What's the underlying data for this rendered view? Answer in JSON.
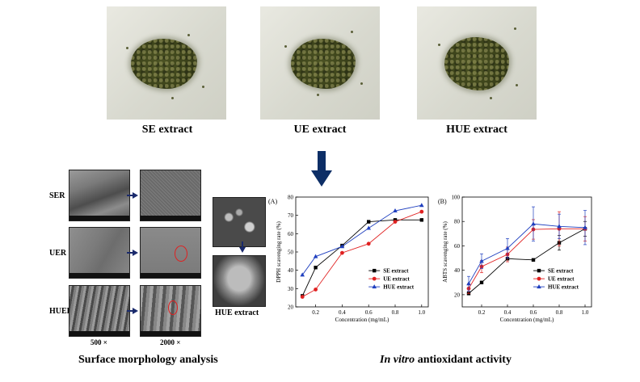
{
  "photos": {
    "captions": [
      "SE extract",
      "UE extract",
      "HUE extract"
    ],
    "colors": {
      "background": "#d9dad0",
      "powder": "#3f461c"
    }
  },
  "sem_panel": {
    "row_labels": [
      "SER",
      "UER",
      "HUER"
    ],
    "magnifications": [
      "500 ×",
      "2000 ×"
    ],
    "hue_label": "HUE extract",
    "caption": "Surface morphology analysis"
  },
  "antioxidant_caption": {
    "italic": "In vitro",
    "rest": " antioxidant activity"
  },
  "chart_data": [
    {
      "type": "line",
      "panel_label": "(A)",
      "title": "",
      "xlabel": "Concentration (mg/mL)",
      "ylabel": "DPPH scavenging rate (%)",
      "xlim": [
        0.05,
        1.05
      ],
      "ylim": [
        20,
        80
      ],
      "x_ticks": [
        0.2,
        0.4,
        0.6,
        0.8,
        1.0
      ],
      "y_ticks": [
        20,
        30,
        40,
        50,
        60,
        70,
        80
      ],
      "x_tick_labels": [
        "0.2",
        "0.4",
        "0.6",
        "0.8",
        "1.0"
      ],
      "y_tick_labels": [
        "20",
        "30",
        "40",
        "50",
        "60",
        "70",
        "80"
      ],
      "x": [
        0.1,
        0.2,
        0.4,
        0.6,
        0.8,
        1.0
      ],
      "legend_position": "bottom-right",
      "series": [
        {
          "name": "SE extract",
          "color": "#000000",
          "marker": "square",
          "values": [
            26,
            41.5,
            53.5,
            66.5,
            67.5,
            67.5
          ]
        },
        {
          "name": "UE extract",
          "color": "#e02020",
          "marker": "circle",
          "values": [
            25.5,
            29.5,
            49.5,
            54.5,
            66.5,
            72
          ]
        },
        {
          "name": "HUE extract",
          "color": "#1f3fbf",
          "marker": "triangle",
          "values": [
            37.5,
            47.5,
            53,
            63,
            72.5,
            75.5
          ]
        }
      ]
    },
    {
      "type": "line",
      "panel_label": "(B)",
      "title": "",
      "xlabel": "Concentration (mg/mL)",
      "ylabel": "ABTS scavenging rate (%)",
      "xlim": [
        0.05,
        1.05
      ],
      "ylim": [
        10,
        100
      ],
      "x_ticks": [
        0.2,
        0.4,
        0.6,
        0.8,
        1.0
      ],
      "y_ticks": [
        20,
        40,
        60,
        80,
        100
      ],
      "x_tick_labels": [
        "0.2",
        "0.4",
        "0.6",
        "0.8",
        "1.0"
      ],
      "y_tick_labels": [
        "20",
        "40",
        "60",
        "80",
        "100"
      ],
      "x": [
        0.1,
        0.2,
        0.4,
        0.6,
        0.8,
        1.0
      ],
      "legend_position": "bottom-right",
      "series": [
        {
          "name": "SE extract",
          "color": "#000000",
          "marker": "square",
          "values": [
            21,
            30,
            49.5,
            48.5,
            62.5,
            74
          ],
          "errors": [
            0,
            0,
            0,
            0,
            6,
            6
          ]
        },
        {
          "name": "UE extract",
          "color": "#e02020",
          "marker": "circle",
          "values": [
            25,
            43,
            53,
            73.5,
            74,
            74
          ],
          "errors": [
            4,
            5,
            6,
            8,
            14,
            10
          ]
        },
        {
          "name": "HUE extract",
          "color": "#1f3fbf",
          "marker": "triangle",
          "values": [
            29,
            47.5,
            58,
            78,
            76,
            75
          ],
          "errors": [
            6,
            6,
            8,
            14,
            10,
            14
          ]
        }
      ]
    }
  ]
}
